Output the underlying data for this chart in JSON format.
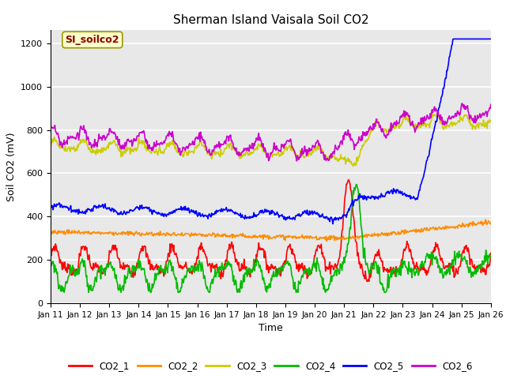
{
  "title": "Sherman Island Vaisala Soil CO2",
  "xlabel": "Time",
  "ylabel": "Soil CO2 (mV)",
  "ylim": [
    0,
    1260
  ],
  "yticks": [
    0,
    200,
    400,
    600,
    800,
    1000,
    1200
  ],
  "x_labels": [
    "Jan 11",
    "Jan 12",
    "Jan 13",
    "Jan 14",
    "Jan 15",
    "Jan 16",
    "Jan 17",
    "Jan 18",
    "Jan 19",
    "Jan 20",
    "Jan 21",
    "Jan 22",
    "Jan 23",
    "Jan 24",
    "Jan 25",
    "Jan 26"
  ],
  "annotation_text": "SI_soilco2",
  "annotation_color": "#8B0000",
  "annotation_bg": "#FFFFCC",
  "plot_bg": "#E8E8E8",
  "colors": {
    "CO2_1": "#FF0000",
    "CO2_2": "#FF8C00",
    "CO2_3": "#CCCC00",
    "CO2_4": "#00BB00",
    "CO2_5": "#0000FF",
    "CO2_6": "#CC00CC"
  },
  "line_width": 1.2,
  "n_days": 15,
  "pts_per_day": 48
}
